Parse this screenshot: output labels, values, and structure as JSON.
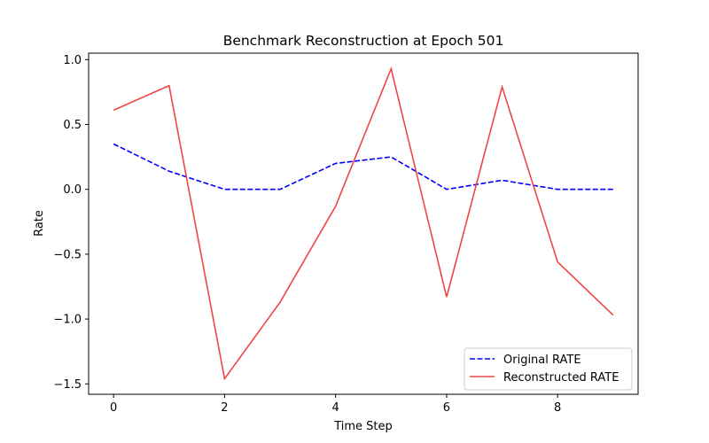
{
  "chart_data": {
    "type": "line",
    "title": "Benchmark Reconstruction at Epoch 501",
    "xlabel": "Time Step",
    "ylabel": "Rate",
    "x": [
      0,
      1,
      2,
      3,
      4,
      5,
      6,
      7,
      8,
      9
    ],
    "xlim": [
      -0.45,
      9.45
    ],
    "ylim": [
      -1.58,
      1.05
    ],
    "xticks": [
      0,
      2,
      4,
      6,
      8
    ],
    "xtick_labels": [
      "0",
      "2",
      "4",
      "6",
      "8"
    ],
    "yticks": [
      1.0,
      0.5,
      0.0,
      -0.5,
      -1.0,
      -1.5
    ],
    "ytick_labels": [
      "1.0",
      "0.5",
      "0.0",
      "−0.5",
      "−1.0",
      "−1.5"
    ],
    "grid": false,
    "legend_position": "lower-right",
    "series": [
      {
        "name": "Original RATE",
        "color": "#0000ff",
        "style": "dashed",
        "values": [
          0.35,
          0.14,
          0.0,
          0.0,
          0.2,
          0.25,
          0.0,
          0.07,
          0.0,
          0.0
        ]
      },
      {
        "name": "Reconstructed RATE",
        "color": "#f04545",
        "style": "solid",
        "values": [
          0.61,
          0.8,
          -1.46,
          -0.87,
          -0.13,
          0.93,
          -0.83,
          0.79,
          -0.56,
          -0.97
        ]
      }
    ]
  }
}
